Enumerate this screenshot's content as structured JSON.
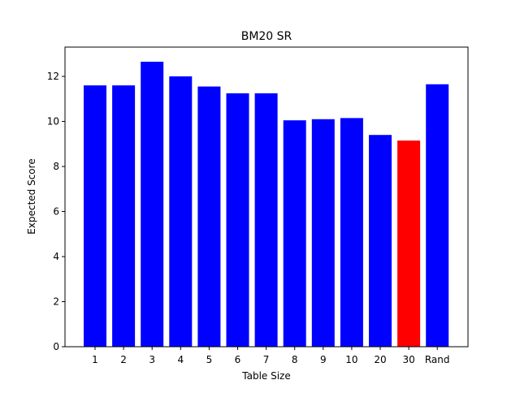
{
  "chart_data": {
    "type": "bar",
    "title": "BM20 SR",
    "xlabel": "Table Size",
    "ylabel": "Expected Score",
    "categories": [
      "1",
      "2",
      "3",
      "4",
      "5",
      "6",
      "7",
      "8",
      "9",
      "10",
      "20",
      "30",
      "Rand"
    ],
    "values": [
      11.6,
      11.6,
      12.65,
      12.0,
      11.55,
      11.25,
      11.25,
      10.05,
      10.1,
      10.15,
      9.4,
      9.15,
      11.65
    ],
    "bar_colors": [
      "#0000ff",
      "#0000ff",
      "#0000ff",
      "#0000ff",
      "#0000ff",
      "#0000ff",
      "#0000ff",
      "#0000ff",
      "#0000ff",
      "#0000ff",
      "#0000ff",
      "#ff0000",
      "#0000ff"
    ],
    "ylim": [
      0,
      13.3
    ],
    "yticks": [
      0,
      2,
      4,
      6,
      8,
      10,
      12
    ],
    "grid": false,
    "legend": "none"
  }
}
